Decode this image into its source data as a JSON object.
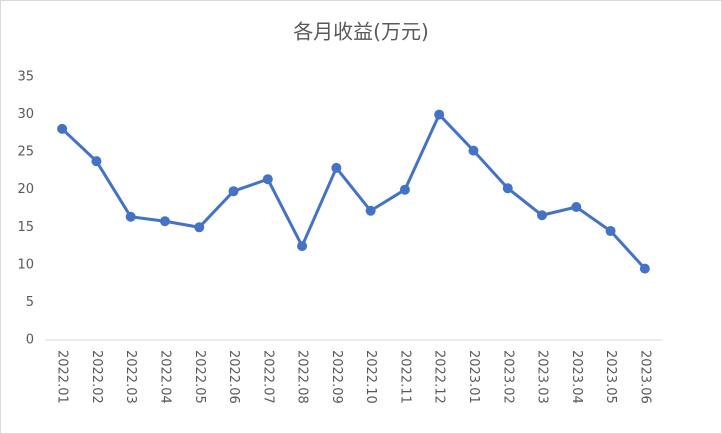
{
  "chart_data": {
    "type": "line",
    "title": "各月收益(万元)",
    "categories": [
      "2022.01",
      "2022.02",
      "2022.03",
      "2022.04",
      "2022.05",
      "2022.06",
      "2022.07",
      "2022.08",
      "2022.09",
      "2022.10",
      "2022.11",
      "2022.12",
      "2023.01",
      "2023.02",
      "2023.03",
      "2023.04",
      "2023.05",
      "2023.06"
    ],
    "values": [
      28.1,
      23.8,
      16.4,
      15.8,
      15.0,
      19.8,
      21.4,
      12.5,
      22.9,
      17.2,
      20.0,
      30.0,
      25.2,
      20.2,
      16.6,
      17.7,
      14.5,
      9.5
    ],
    "color": "#4472c4",
    "ylim": [
      0,
      35
    ],
    "yticks": [
      0,
      5,
      10,
      15,
      20,
      25,
      30,
      35
    ],
    "grid": false
  }
}
